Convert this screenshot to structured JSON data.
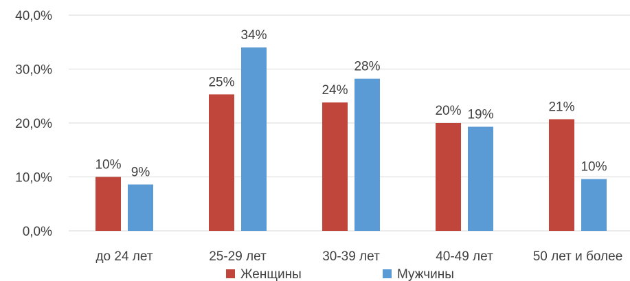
{
  "chart_data": {
    "type": "bar",
    "title": "",
    "xlabel": "",
    "ylabel": "",
    "categories": [
      "до 24 лет",
      "25-29 лет",
      "30-39 лет",
      "40-49 лет",
      "50 лет и более"
    ],
    "series": [
      {
        "name": "Женщины",
        "color": "#c0463c",
        "values": [
          10.0,
          25.3,
          23.8,
          20.0,
          20.7
        ],
        "labels": [
          "10%",
          "25%",
          "24%",
          "20%",
          "21%"
        ]
      },
      {
        "name": "Мужчины",
        "color": "#5b9bd5",
        "values": [
          8.6,
          34.0,
          28.2,
          19.3,
          9.6
        ],
        "labels": [
          "9%",
          "34%",
          "28%",
          "19%",
          "10%"
        ]
      }
    ],
    "yticks": [
      0,
      10,
      20,
      30,
      40
    ],
    "ytick_labels": [
      "0,0%",
      "10,0%",
      "20,0%",
      "30,0%",
      "40,0%"
    ],
    "ylim": [
      0,
      40
    ],
    "grid": true,
    "legend": "bottom"
  }
}
